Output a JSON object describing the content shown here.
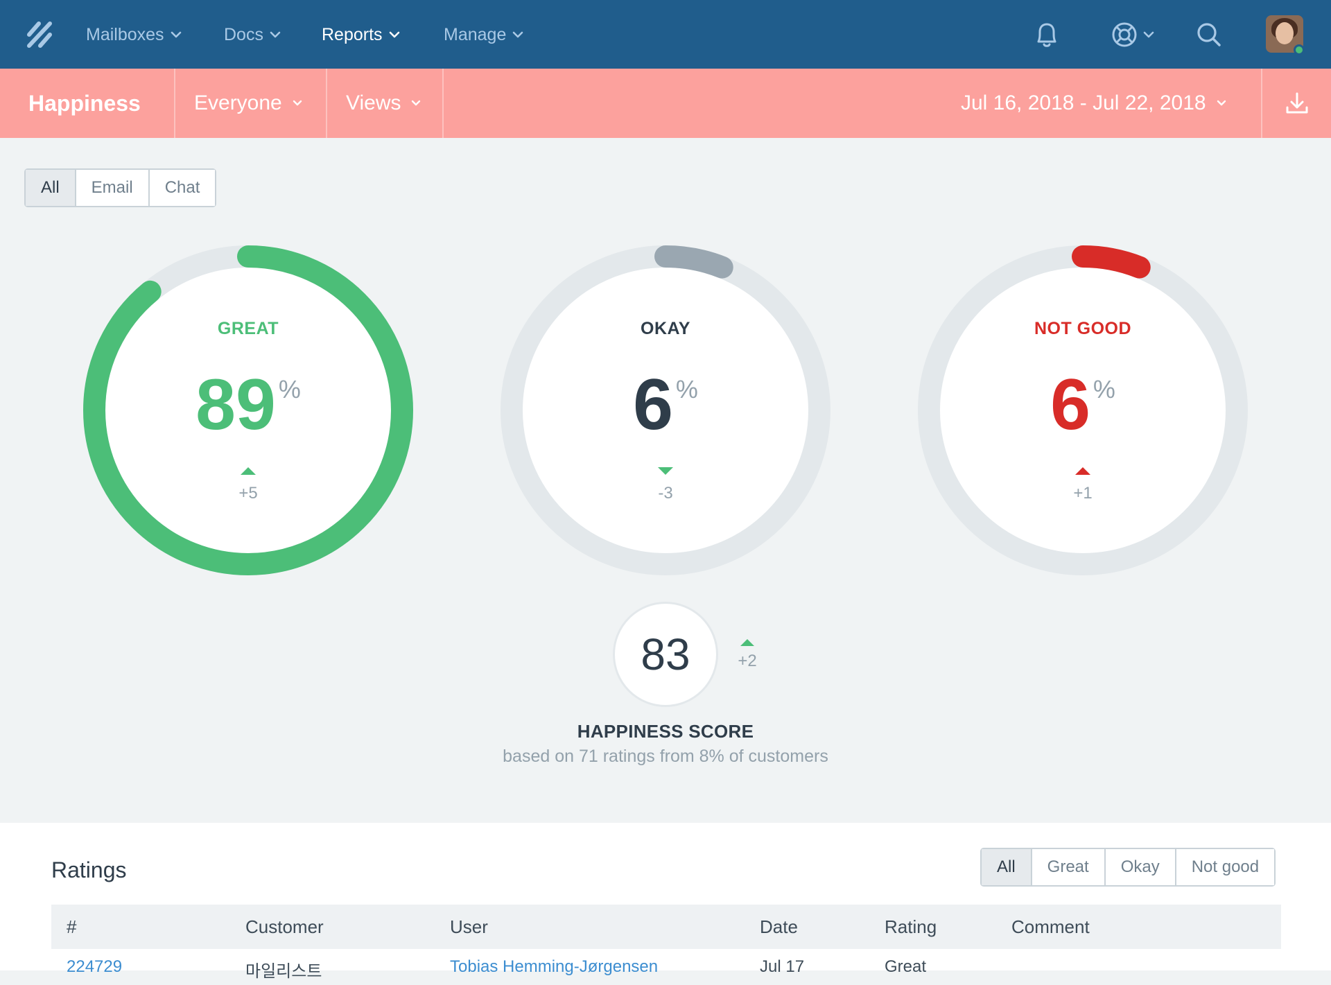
{
  "nav": {
    "items": [
      {
        "label": "Mailboxes",
        "active": false
      },
      {
        "label": "Docs",
        "active": false
      },
      {
        "label": "Reports",
        "active": true
      },
      {
        "label": "Manage",
        "active": false
      }
    ],
    "icons": [
      "bell-icon",
      "help-lifebuoy-icon",
      "search-icon"
    ],
    "colors": {
      "bar": "#205d8c",
      "inactive": "#a9c9e6",
      "active": "#ffffff"
    }
  },
  "subnav": {
    "title": "Happiness",
    "filter": "Everyone",
    "views": "Views",
    "date_range": "Jul 16, 2018 - Jul 22, 2018",
    "download_icon": "download-icon",
    "color": "#fca19d"
  },
  "channel_filter": {
    "options": [
      "All",
      "Email",
      "Chat"
    ],
    "selected": "All"
  },
  "metrics": [
    {
      "label": "GREAT",
      "value": "89",
      "unit": "%",
      "delta": "+5",
      "direction": "up",
      "fraction": 0.89,
      "color": "#4cbe78",
      "delta_color": "#4cbe78"
    },
    {
      "label": "OKAY",
      "value": "6",
      "unit": "%",
      "delta": "-3",
      "direction": "down",
      "fraction": 0.06,
      "color": "#9aa7b1",
      "text_color": "#2f3d4a",
      "delta_color": "#4cbe78"
    },
    {
      "label": "NOT GOOD",
      "value": "6",
      "unit": "%",
      "delta": "+1",
      "direction": "up",
      "fraction": 0.06,
      "color": "#d82c28",
      "delta_color": "#d82c28"
    }
  ],
  "score": {
    "value": "83",
    "delta": "+2",
    "direction": "up",
    "title": "HAPPINESS SCORE",
    "subtitle": "based on 71 ratings from 8% of customers"
  },
  "ratings": {
    "title": "Ratings",
    "filter": {
      "options": [
        "All",
        "Great",
        "Okay",
        "Not good"
      ],
      "selected": "All"
    },
    "columns": [
      "#",
      "Customer",
      "User",
      "Date",
      "Rating",
      "Comment"
    ],
    "rows": [
      {
        "id": "224729",
        "customer": "마일리스트",
        "user": "Tobias Hemming-Jørgensen",
        "date": "Jul 17",
        "rating": "Great",
        "comment": ""
      }
    ]
  }
}
